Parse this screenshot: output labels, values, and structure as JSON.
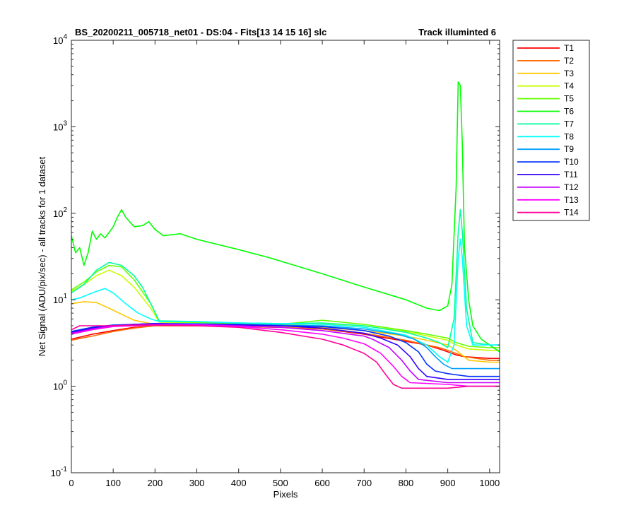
{
  "chart_data": {
    "type": "line",
    "title": "BS_20200211_005718_net01 - DS:04 - Fits[13  14  15  16]   slc",
    "title_right": "Track illuminted 6",
    "xlabel": "Pixels",
    "ylabel": "Net Signal (ADU/pix/sec) - all tracks for 1 dataset",
    "xlim": [
      0,
      1024
    ],
    "ylim": [
      0.1,
      10000
    ],
    "yscale": "log",
    "grid": false,
    "legend_position": "outside-top-right",
    "x_ticks": [
      "0",
      "100",
      "200",
      "300",
      "400",
      "500",
      "600",
      "700",
      "800",
      "900",
      "1000"
    ],
    "x_tick_values": [
      0,
      100,
      200,
      300,
      400,
      500,
      600,
      700,
      800,
      900,
      1000
    ],
    "y_ticks": [
      {
        "base": "10",
        "exp": "-1",
        "value": 0.1
      },
      {
        "base": "10",
        "exp": "0",
        "value": 1
      },
      {
        "base": "10",
        "exp": "1",
        "value": 10
      },
      {
        "base": "10",
        "exp": "2",
        "value": 100
      },
      {
        "base": "10",
        "exp": "3",
        "value": 1000
      },
      {
        "base": "10",
        "exp": "4",
        "value": 10000
      }
    ],
    "series": [
      {
        "name": "T1",
        "color": "#ff0000",
        "x": [
          0,
          50,
          100,
          150,
          200,
          300,
          400,
          500,
          600,
          700,
          800,
          850,
          880,
          900,
          920,
          940,
          1000,
          1024
        ],
        "y": [
          3.5,
          4.0,
          4.4,
          4.8,
          5.0,
          5.0,
          4.9,
          4.8,
          4.6,
          4.0,
          3.3,
          3.0,
          2.7,
          2.5,
          2.3,
          2.2,
          2.1,
          2.1
        ]
      },
      {
        "name": "T2",
        "color": "#ff6a00",
        "x": [
          0,
          50,
          100,
          150,
          200,
          300,
          400,
          500,
          600,
          700,
          800,
          850,
          880,
          900,
          920,
          940,
          1000,
          1024
        ],
        "y": [
          3.4,
          3.8,
          4.3,
          4.7,
          5.0,
          5.0,
          4.9,
          4.8,
          4.6,
          4.1,
          3.4,
          3.0,
          2.8,
          2.6,
          2.4,
          2.2,
          2.0,
          2.0
        ]
      },
      {
        "name": "T3",
        "color": "#ffc800",
        "x": [
          0,
          30,
          60,
          90,
          120,
          150,
          200,
          300,
          400,
          500,
          600,
          700,
          800,
          850,
          900,
          920,
          950,
          1000,
          1024
        ],
        "y": [
          9.0,
          9.5,
          9.3,
          8.0,
          6.8,
          5.8,
          5.2,
          5.2,
          5.0,
          4.9,
          4.8,
          4.4,
          3.8,
          3.4,
          3.0,
          2.6,
          2.0,
          1.9,
          1.9
        ]
      },
      {
        "name": "T4",
        "color": "#c8ff00",
        "x": [
          0,
          30,
          60,
          90,
          120,
          150,
          190,
          210,
          300,
          400,
          500,
          600,
          700,
          800,
          900,
          920,
          950,
          1000,
          1024
        ],
        "y": [
          12.5,
          15,
          19,
          22,
          19,
          14,
          8.0,
          5.5,
          5.4,
          5.2,
          5.1,
          5.3,
          5.0,
          4.3,
          3.4,
          3.0,
          2.7,
          2.6,
          2.6
        ]
      },
      {
        "name": "T5",
        "color": "#64ff00",
        "x": [
          0,
          30,
          60,
          90,
          120,
          150,
          190,
          210,
          300,
          400,
          500,
          600,
          700,
          800,
          850,
          900,
          920,
          950,
          1000,
          1024
        ],
        "y": [
          13,
          16,
          21,
          25,
          24,
          17,
          9.0,
          5.6,
          5.5,
          5.3,
          5.2,
          5.8,
          5.2,
          4.4,
          4.0,
          3.6,
          3.2,
          2.9,
          2.8,
          2.8
        ]
      },
      {
        "name": "T6",
        "color": "#00ff00",
        "x": [
          0,
          10,
          20,
          30,
          40,
          50,
          60,
          70,
          80,
          90,
          100,
          110,
          120,
          130,
          150,
          170,
          185,
          200,
          220,
          260,
          300,
          400,
          480,
          500,
          600,
          700,
          800,
          850,
          880,
          900,
          910,
          920,
          925,
          930,
          935,
          940,
          950,
          960,
          980,
          1000,
          1024
        ],
        "y": [
          55,
          35,
          40,
          25,
          35,
          62,
          50,
          58,
          52,
          60,
          70,
          90,
          110,
          90,
          70,
          72,
          80,
          65,
          55,
          58,
          50,
          38,
          30,
          28,
          20,
          14,
          10,
          8.0,
          7.5,
          8.5,
          15,
          200,
          3300,
          3000,
          600,
          40,
          10,
          5.0,
          3.5,
          3.0,
          2.5
        ]
      },
      {
        "name": "T7",
        "color": "#00ffa0",
        "x": [
          0,
          30,
          60,
          90,
          120,
          150,
          170,
          190,
          210,
          300,
          400,
          500,
          600,
          700,
          800,
          850,
          880,
          900,
          915,
          925,
          930,
          935,
          945,
          960,
          1000,
          1024
        ],
        "y": [
          12,
          15,
          22,
          27,
          25,
          19,
          14,
          9.0,
          5.7,
          5.6,
          5.4,
          5.3,
          5.4,
          5.0,
          4.2,
          3.6,
          3.2,
          2.8,
          6.0,
          60,
          110,
          60,
          8.0,
          3.2,
          3.0,
          3.0
        ]
      },
      {
        "name": "T8",
        "color": "#00ffff",
        "x": [
          0,
          20,
          50,
          80,
          100,
          130,
          160,
          190,
          210,
          300,
          400,
          500,
          600,
          700,
          800,
          850,
          880,
          900,
          915,
          925,
          930,
          935,
          945,
          960,
          1000,
          1024
        ],
        "y": [
          10,
          10.5,
          12,
          13.5,
          12,
          9.0,
          7.0,
          6.0,
          5.6,
          5.6,
          5.4,
          5.3,
          5.2,
          4.8,
          3.9,
          3.0,
          2.2,
          1.9,
          3.0,
          30,
          50,
          30,
          5.0,
          3.0,
          3.0,
          3.0
        ]
      },
      {
        "name": "T9",
        "color": "#00a0ff",
        "x": [
          0,
          50,
          100,
          150,
          200,
          300,
          400,
          500,
          600,
          700,
          780,
          820,
          850,
          870,
          890,
          910,
          950,
          1000,
          1024
        ],
        "y": [
          4.3,
          4.8,
          5.1,
          5.2,
          5.3,
          5.3,
          5.2,
          5.1,
          5.0,
          4.6,
          4.0,
          3.5,
          2.8,
          2.2,
          1.8,
          1.6,
          1.6,
          1.6,
          1.6
        ]
      },
      {
        "name": "T10",
        "color": "#0032ff",
        "x": [
          0,
          50,
          100,
          150,
          200,
          300,
          400,
          500,
          600,
          700,
          760,
          800,
          830,
          850,
          870,
          900,
          950,
          1000,
          1024
        ],
        "y": [
          4.3,
          4.8,
          5.1,
          5.2,
          5.3,
          5.2,
          5.2,
          5.0,
          4.9,
          4.4,
          3.8,
          3.2,
          2.5,
          1.8,
          1.5,
          1.4,
          1.3,
          1.3,
          1.3
        ]
      },
      {
        "name": "T11",
        "color": "#3200ff",
        "x": [
          0,
          50,
          100,
          150,
          200,
          300,
          400,
          500,
          600,
          700,
          740,
          780,
          810,
          830,
          850,
          900,
          950,
          1000,
          1024
        ],
        "y": [
          4.2,
          4.7,
          5.0,
          5.2,
          5.3,
          5.2,
          5.1,
          5.0,
          4.7,
          4.1,
          3.6,
          3.0,
          2.2,
          1.6,
          1.3,
          1.2,
          1.2,
          1.2,
          1.2
        ]
      },
      {
        "name": "T12",
        "color": "#c800ff",
        "x": [
          0,
          50,
          100,
          150,
          200,
          300,
          400,
          500,
          600,
          700,
          720,
          760,
          790,
          810,
          830,
          900,
          950,
          1000,
          1024
        ],
        "y": [
          4.1,
          4.6,
          5.0,
          5.1,
          5.2,
          5.2,
          5.0,
          4.8,
          4.4,
          3.8,
          3.5,
          2.8,
          2.0,
          1.5,
          1.2,
          1.1,
          1.1,
          1.1,
          1.1
        ]
      },
      {
        "name": "T13",
        "color": "#ff00ff",
        "x": [
          0,
          50,
          100,
          150,
          200,
          300,
          400,
          500,
          600,
          650,
          700,
          740,
          770,
          790,
          810,
          900,
          950,
          1000,
          1024
        ],
        "y": [
          4.0,
          4.5,
          4.9,
          5.0,
          5.1,
          5.1,
          4.9,
          4.5,
          4.0,
          3.6,
          3.1,
          2.4,
          1.7,
          1.3,
          1.1,
          1.05,
          1.0,
          1.0,
          1.0
        ]
      },
      {
        "name": "T14",
        "color": "#ff0096",
        "x": [
          0,
          20,
          50,
          100,
          150,
          200,
          300,
          400,
          500,
          600,
          650,
          700,
          730,
          750,
          770,
          790,
          850,
          900,
          950,
          1000,
          1024
        ],
        "y": [
          4.5,
          5.0,
          5.0,
          5.0,
          5.1,
          5.1,
          5.0,
          4.8,
          4.2,
          3.5,
          3.0,
          2.4,
          1.9,
          1.4,
          1.05,
          0.95,
          0.95,
          0.95,
          1.0,
          1.0,
          1.0
        ]
      }
    ]
  }
}
